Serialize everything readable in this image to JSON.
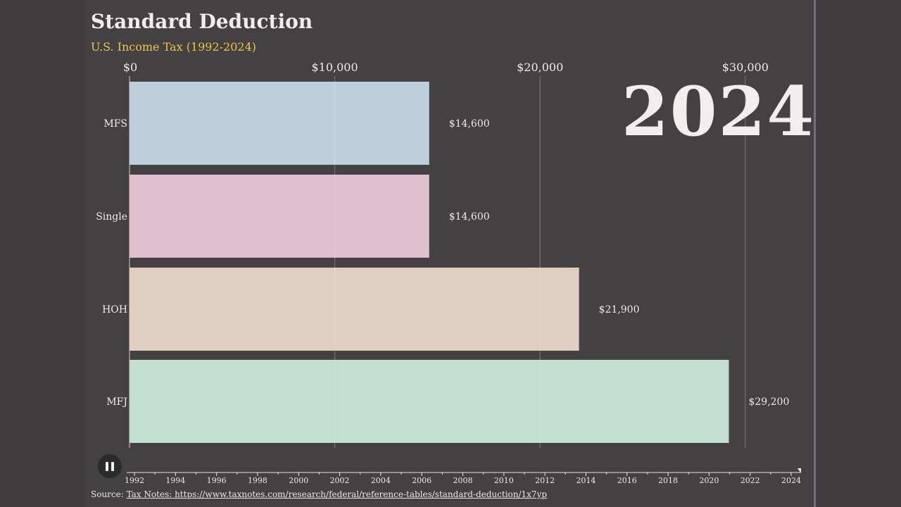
{
  "header": {
    "title": "Standard Deduction",
    "subtitle": "U.S. Income Tax (1992-2024)"
  },
  "current_year": "2024",
  "controls": {
    "pause_icon": "pause-icon"
  },
  "source": {
    "label": "Source:",
    "link_text": "Tax Notes: https://www.taxnotes.com/research/federal/reference-tables/standard-deduction/1x7yp"
  },
  "timeline": {
    "ticks": [
      "1992",
      "1994",
      "1996",
      "1998",
      "2000",
      "2002",
      "2004",
      "2006",
      "2008",
      "2010",
      "2012",
      "2014",
      "2016",
      "2018",
      "2020",
      "2022",
      "2024"
    ],
    "current": 2024
  },
  "chart_data": {
    "type": "bar",
    "orientation": "horizontal",
    "categories": [
      "MFS",
      "Single",
      "HOH",
      "MFJ"
    ],
    "values": [
      14600,
      14600,
      21900,
      29200
    ],
    "value_labels": [
      "$14,600",
      "$14,600",
      "$21,900",
      "$29,200"
    ],
    "colors": [
      "#bfd0dd",
      "#e0bfcf",
      "#dfcfc1",
      "#c2dfd1"
    ],
    "x_ticks": [
      0,
      10000,
      20000,
      30000
    ],
    "x_tick_labels": [
      "$0",
      "$10,000",
      "$20,000",
      "$30,000"
    ],
    "xlim": [
      0,
      32500
    ],
    "grid": true
  }
}
